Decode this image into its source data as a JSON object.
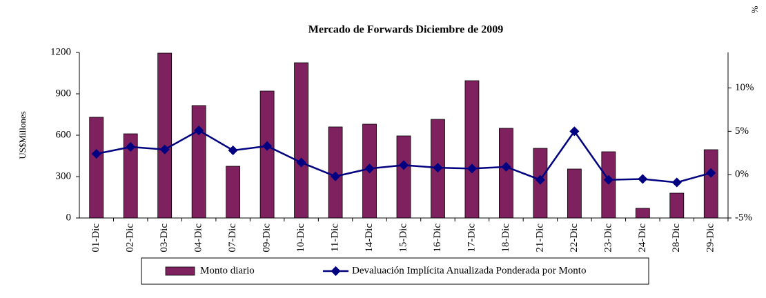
{
  "chart_data": {
    "type": "bar_line",
    "title": "Mercado de Forwards Diciembre de 2009",
    "y_label": "US$Millones",
    "y2_label": "%",
    "categories": [
      "01-Dic",
      "02-Dic",
      "03-Dic",
      "04-Dic",
      "07-Dic",
      "09-Dic",
      "10-Dic",
      "11-Dic",
      "14-Dic",
      "15-Dic",
      "16-Dic",
      "17-Dic",
      "18-Dic",
      "21-Dic",
      "22-Dic",
      "23-Dic",
      "24-Dic",
      "28-Dic",
      "29-Dic"
    ],
    "series": [
      {
        "name": "Monto diario",
        "type": "bar",
        "color": "#80215f",
        "values": [
          730,
          610,
          1195,
          815,
          375,
          920,
          1125,
          660,
          680,
          595,
          715,
          995,
          650,
          505,
          355,
          480,
          70,
          180,
          495
        ]
      },
      {
        "name": "Devaluación Implícita Anualizada Ponderada por Monto",
        "type": "line",
        "axis": "y2",
        "color": "#000080",
        "values": [
          2.4,
          3.2,
          2.9,
          5.1,
          2.8,
          3.3,
          1.4,
          -0.2,
          0.7,
          1.1,
          0.8,
          0.7,
          0.9,
          -0.6,
          5.0,
          -0.6,
          -0.5,
          -0.9,
          0.2
        ]
      }
    ],
    "ylim": [
      0,
      1200
    ],
    "yticks": [
      0,
      300,
      600,
      900,
      1200
    ],
    "y2lim": [
      -5,
      14.1
    ],
    "y2ticks": [
      {
        "value": -5,
        "label": "-5%"
      },
      {
        "value": 0,
        "label": "0%"
      },
      {
        "value": 5,
        "label": "5%"
      },
      {
        "value": 10,
        "label": "10%"
      }
    ]
  }
}
